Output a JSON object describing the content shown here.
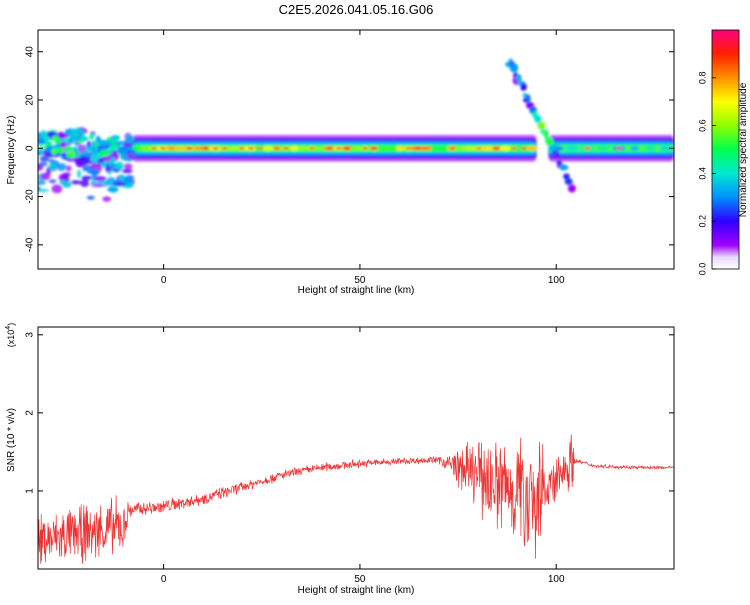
{
  "title": "C2E5.2026.041.05.16.G06",
  "chart_data": [
    {
      "type": "heatmap",
      "xlabel": "Height of straight line (km)",
      "ylabel": "Frequency (Hz)",
      "xlim": [
        -32,
        130
      ],
      "ylim": [
        -50,
        49
      ],
      "xticks": [
        0,
        50,
        100
      ],
      "yticks": [
        -40,
        -20,
        0,
        20,
        40
      ],
      "colorbar": {
        "label": "Normalized spectral amplitude",
        "range": [
          0.0,
          1.0
        ],
        "ticks": [
          0.0,
          0.2,
          0.4,
          0.6,
          0.8
        ],
        "tick_labels": [
          "0.0",
          "0.2",
          "0.4",
          "0.6",
          "0.8"
        ]
      },
      "features": [
        {
          "x_range": [
            -32,
            -8
          ],
          "y_range": [
            -20,
            8
          ],
          "amplitude": 0.3
        },
        {
          "x_range": [
            -8,
            95
          ],
          "center_y": 0,
          "amplitude": 0.85
        },
        {
          "x_range": [
            88,
            104
          ],
          "y_from": 36,
          "y_to": -16,
          "amplitude": 0.25
        },
        {
          "x_range": [
            98,
            130
          ],
          "center_y": 0,
          "amplitude": 0.45
        }
      ]
    },
    {
      "type": "line",
      "xlabel": "Height of straight line (km)",
      "ylabel": "SNR (10 * v/v)",
      "yscale_label": "(x10",
      "yscale_exp": "4",
      "yscale_close": ")",
      "xlim": [
        -32,
        130
      ],
      "ylim": [
        0,
        3.1
      ],
      "xticks": [
        0,
        50,
        100
      ],
      "yticks": [
        1,
        2,
        3
      ],
      "color": "#ee3333",
      "trend_x": [
        -32,
        -10,
        -9,
        0,
        10,
        20,
        30,
        40,
        50,
        60,
        70,
        75,
        80,
        85,
        90,
        95,
        100,
        102,
        104,
        110,
        120,
        130
      ],
      "trend_y": [
        0.35,
        0.55,
        0.75,
        0.8,
        0.9,
        1.05,
        1.2,
        1.3,
        1.35,
        1.38,
        1.4,
        1.3,
        1.2,
        1.1,
        1.0,
        1.0,
        1.1,
        1.3,
        1.4,
        1.32,
        1.3,
        1.3
      ],
      "noise_x": [
        -32,
        -10,
        -9,
        20,
        70,
        75,
        85,
        96,
        97,
        104,
        105,
        130
      ],
      "noise_amp": [
        0.4,
        0.45,
        0.12,
        0.08,
        0.05,
        0.3,
        0.75,
        0.95,
        0.35,
        0.45,
        0.03,
        0.02
      ]
    }
  ]
}
